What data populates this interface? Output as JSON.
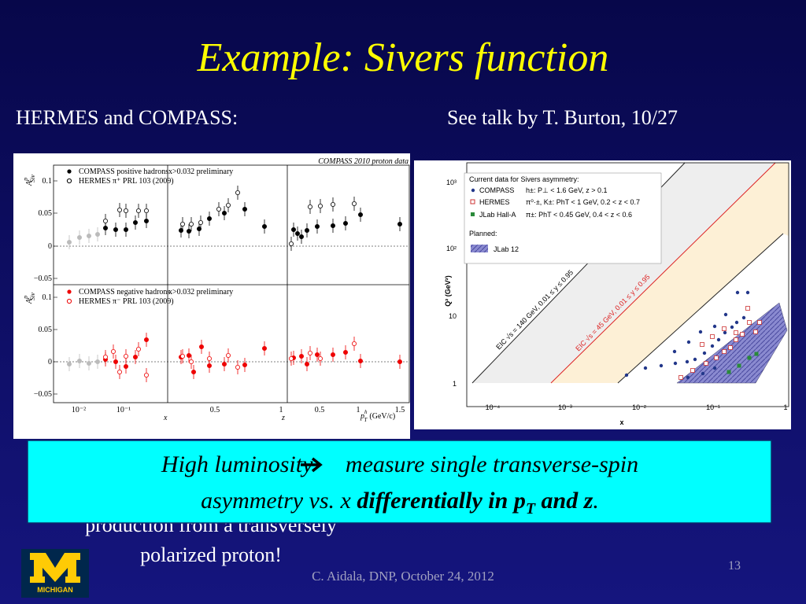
{
  "header": {
    "title": "Example: Sivers function",
    "left": "HERMES and COMPASS:",
    "right": "See talk by T. Burton, 10/27"
  },
  "left_figure": {
    "caption": "COMPASS 2010 proton data",
    "y_label": "A",
    "y_label_sup": "p",
    "y_label_sub": "Siv",
    "top_legend": [
      "COMPASS positive hadrons",
      "HERMES π⁺ PRL 103 (2009)"
    ],
    "top_note": "x>0.032 preliminary",
    "bottom_legend": [
      "COMPASS negative  hadrons",
      "HERMES π⁻ PRL 103 (2009)"
    ],
    "bottom_note": "x>0.032  preliminary",
    "y_ticks": [
      "0.1",
      "0.05",
      "0",
      "−0.05"
    ],
    "x_ticks": [
      "10⁻²",
      "10⁻¹",
      "0.5",
      "1",
      "0.5",
      "1",
      "1.5"
    ],
    "x_labels": [
      "x",
      "z",
      "p",
      "h",
      "T",
      "(GeV/c)"
    ]
  },
  "right_figure": {
    "legend_title": "Current data for Sivers asymmetry:",
    "legend": [
      {
        "name": "COMPASS",
        "cuts": "h±: P⊥ < 1.6 GeV,  z > 0.1"
      },
      {
        "name": "HERMES",
        "cuts": "π⁰·±, K±: PhT < 1 GeV, 0.2 < z < 0.7"
      },
      {
        "name": "JLab Hall-A",
        "cuts": "π±: PhT < 0.45 GeV,  0.4 < z < 0.6"
      }
    ],
    "planned_title": "Planned:",
    "planned": "JLab 12",
    "eic_high": "EIC √s = 140 GeV, 0.01 ≤ y ≤ 0.95",
    "eic_low": "EIC √s = 45 GeV, 0.01 ≤ y ≤ 0.95",
    "y_label": "Q² (GeV²)",
    "x_label": "x",
    "y_ticks": [
      "10³",
      "10²",
      "10",
      "1"
    ],
    "x_ticks": [
      "10⁻⁴",
      "10⁻³",
      "10⁻²",
      "10⁻¹",
      "1"
    ]
  },
  "callout": {
    "line1_a": "High luminosity ",
    "line1_b": " measure single transverse-spin",
    "line2_a": "asymmetry vs. x ",
    "line2_b": "differentially in p",
    "line2_sub": "T",
    "line2_c": " and z",
    "line2_d": "."
  },
  "background_text": [
    "production from a transversely",
    "polarized proton!"
  ],
  "logo": "MICHIGAN",
  "footer": {
    "credit": "C. Aidala, DNP, October 24, 2012",
    "page": "13"
  }
}
